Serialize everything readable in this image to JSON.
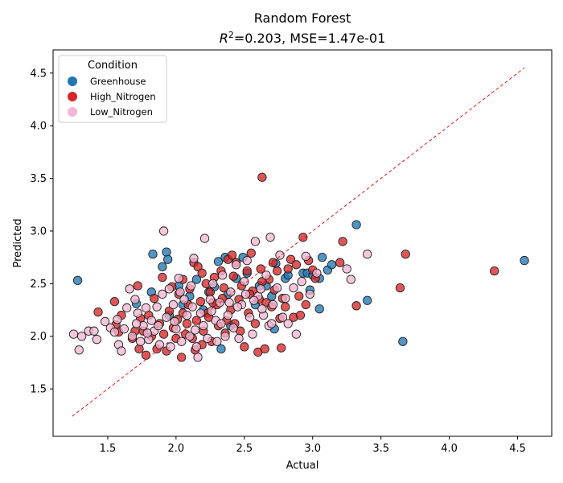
{
  "chart_data": {
    "type": "scatter",
    "title": "Random Forest",
    "subtitle": {
      "r2_label": "R",
      "r2_sup": "2",
      "r2_value": "=0.203, MSE=1.47e-01"
    },
    "xlabel": "Actual",
    "ylabel": "Predicted",
    "xlim": [
      1.1,
      4.75
    ],
    "ylim": [
      1.05,
      4.72
    ],
    "xticks": [
      "1.5",
      "2.0",
      "2.5",
      "3.0",
      "3.5",
      "4.0",
      "4.5"
    ],
    "yticks": [
      "1.5",
      "2.0",
      "2.5",
      "3.0",
      "3.5",
      "4.0",
      "4.5"
    ],
    "grid": false,
    "legend": {
      "title": "Condition",
      "placement": "top-left"
    },
    "reference_line": {
      "x": [
        1.24,
        4.55
      ],
      "y": [
        1.24,
        4.55
      ],
      "color": "#e31a1c",
      "style": "dashed"
    },
    "series": [
      {
        "name": "Greenhouse",
        "color": "#1f77b4",
        "points": [
          [
            1.28,
            2.53
          ],
          [
            1.71,
            2.31
          ],
          [
            1.82,
            2.42
          ],
          [
            1.83,
            2.78
          ],
          [
            1.9,
            2.66
          ],
          [
            1.93,
            2.8
          ],
          [
            1.94,
            2.73
          ],
          [
            2.02,
            2.48
          ],
          [
            2.1,
            2.38
          ],
          [
            2.15,
            2.54
          ],
          [
            2.24,
            2.42
          ],
          [
            2.28,
            2.47
          ],
          [
            2.31,
            2.71
          ],
          [
            2.33,
            1.88
          ],
          [
            2.36,
            2.75
          ],
          [
            2.38,
            2.4
          ],
          [
            2.44,
            2.55
          ],
          [
            2.49,
            2.75
          ],
          [
            2.58,
            2.3
          ],
          [
            2.61,
            2.48
          ],
          [
            2.7,
            2.38
          ],
          [
            2.72,
            2.07
          ],
          [
            2.73,
            2.69
          ],
          [
            2.8,
            2.55
          ],
          [
            2.82,
            2.58
          ],
          [
            2.93,
            2.6
          ],
          [
            2.96,
            2.6
          ],
          [
            2.98,
            2.44
          ],
          [
            3.0,
            2.58
          ],
          [
            3.05,
            2.55
          ],
          [
            3.05,
            2.26
          ],
          [
            3.07,
            2.75
          ],
          [
            3.11,
            2.63
          ],
          [
            3.14,
            2.68
          ],
          [
            3.32,
            3.06
          ],
          [
            3.4,
            2.34
          ],
          [
            3.66,
            1.95
          ],
          [
            4.55,
            2.72
          ],
          [
            2.05,
            2.3
          ],
          [
            1.95,
            2.2
          ],
          [
            2.2,
            2.25
          ],
          [
            2.4,
            2.1
          ],
          [
            2.52,
            2.6
          ],
          [
            2.66,
            2.48
          ]
        ]
      },
      {
        "name": "High_Nitrogen",
        "color": "#d62728",
        "points": [
          [
            1.43,
            2.23
          ],
          [
            1.55,
            2.33
          ],
          [
            1.56,
            2.11
          ],
          [
            1.58,
            2.04
          ],
          [
            1.6,
            2.2
          ],
          [
            1.68,
            1.98
          ],
          [
            1.7,
            2.05
          ],
          [
            1.72,
            2.48
          ],
          [
            1.73,
            1.88
          ],
          [
            1.74,
            2.17
          ],
          [
            1.76,
            2.05
          ],
          [
            1.78,
            1.82
          ],
          [
            1.8,
            2.2
          ],
          [
            1.82,
            2.0
          ],
          [
            1.84,
            2.36
          ],
          [
            1.86,
            1.88
          ],
          [
            1.88,
            2.12
          ],
          [
            1.9,
            2.56
          ],
          [
            1.91,
            2.02
          ],
          [
            1.93,
            1.86
          ],
          [
            1.95,
            2.24
          ],
          [
            1.97,
            2.47
          ],
          [
            2.0,
            1.98
          ],
          [
            2.01,
            2.16
          ],
          [
            2.02,
            2.4
          ],
          [
            2.04,
            1.8
          ],
          [
            2.05,
            2.54
          ],
          [
            2.07,
            2.02
          ],
          [
            2.09,
            2.3
          ],
          [
            2.1,
            2.45
          ],
          [
            2.12,
            1.98
          ],
          [
            2.13,
            2.7
          ],
          [
            2.14,
            1.87
          ],
          [
            2.15,
            2.15
          ],
          [
            2.16,
            2.66
          ],
          [
            2.18,
            2.33
          ],
          [
            2.19,
            2.6
          ],
          [
            2.2,
            2.05
          ],
          [
            2.22,
            2.5
          ],
          [
            2.23,
            2.22
          ],
          [
            2.25,
            2.42
          ],
          [
            2.26,
            1.95
          ],
          [
            2.28,
            2.56
          ],
          [
            2.3,
            2.3
          ],
          [
            2.31,
            2.1
          ],
          [
            2.33,
            2.62
          ],
          [
            2.35,
            2.46
          ],
          [
            2.36,
            2.03
          ],
          [
            2.38,
            2.73
          ],
          [
            2.4,
            2.25
          ],
          [
            2.41,
            2.77
          ],
          [
            2.42,
            2.57
          ],
          [
            2.43,
            2.12
          ],
          [
            2.44,
            2.7
          ],
          [
            2.46,
            2.35
          ],
          [
            2.48,
            2.48
          ],
          [
            2.5,
            1.9
          ],
          [
            2.52,
            2.62
          ],
          [
            2.53,
            2.22
          ],
          [
            2.55,
            2.79
          ],
          [
            2.56,
            2.43
          ],
          [
            2.58,
            2.12
          ],
          [
            2.6,
            1.85
          ],
          [
            2.61,
            2.35
          ],
          [
            2.62,
            2.64
          ],
          [
            2.63,
            3.51
          ],
          [
            2.65,
            1.88
          ],
          [
            2.66,
            2.32
          ],
          [
            2.68,
            2.54
          ],
          [
            2.7,
            2.28
          ],
          [
            2.71,
            2.7
          ],
          [
            2.72,
            2.44
          ],
          [
            2.74,
            2.62
          ],
          [
            2.76,
            2.17
          ],
          [
            2.77,
            1.89
          ],
          [
            2.78,
            2.36
          ],
          [
            2.8,
            2.28
          ],
          [
            2.82,
            2.64
          ],
          [
            2.84,
            2.73
          ],
          [
            2.86,
            2.18
          ],
          [
            2.88,
            2.68
          ],
          [
            2.9,
            2.38
          ],
          [
            2.91,
            2.2
          ],
          [
            2.93,
            2.94
          ],
          [
            2.95,
            2.3
          ],
          [
            2.97,
            2.72
          ],
          [
            3.0,
            2.63
          ],
          [
            3.02,
            2.55
          ],
          [
            3.2,
            2.7
          ],
          [
            3.22,
            2.9
          ],
          [
            3.32,
            2.29
          ],
          [
            3.64,
            2.46
          ],
          [
            3.68,
            2.78
          ],
          [
            4.33,
            2.62
          ],
          [
            2.08,
            2.12
          ],
          [
            2.24,
            2.18
          ],
          [
            2.37,
            2.15
          ],
          [
            2.47,
            2.05
          ],
          [
            1.98,
            2.08
          ],
          [
            2.27,
            2.32
          ],
          [
            2.54,
            2.4
          ],
          [
            2.19,
            1.92
          ],
          [
            2.05,
            2.22
          ],
          [
            2.63,
            2.52
          ],
          [
            2.34,
            2.36
          ]
        ]
      },
      {
        "name": "Low_Nitrogen",
        "color": "#f4b6d2",
        "points": [
          [
            1.25,
            2.02
          ],
          [
            1.29,
            1.87
          ],
          [
            1.31,
            2.0
          ],
          [
            1.36,
            2.05
          ],
          [
            1.4,
            2.05
          ],
          [
            1.42,
            1.97
          ],
          [
            1.48,
            2.14
          ],
          [
            1.52,
            2.08
          ],
          [
            1.55,
            2.04
          ],
          [
            1.58,
            1.92
          ],
          [
            1.6,
            1.86
          ],
          [
            1.62,
            2.07
          ],
          [
            1.64,
            2.27
          ],
          [
            1.66,
            2.45
          ],
          [
            1.68,
            2.0
          ],
          [
            1.7,
            2.35
          ],
          [
            1.72,
            2.22
          ],
          [
            1.74,
            1.95
          ],
          [
            1.76,
            2.1
          ],
          [
            1.78,
            2.27
          ],
          [
            1.8,
            1.97
          ],
          [
            1.82,
            2.15
          ],
          [
            1.84,
            2.05
          ],
          [
            1.86,
            2.28
          ],
          [
            1.88,
            1.92
          ],
          [
            1.9,
            2.4
          ],
          [
            1.91,
            3.0
          ],
          [
            1.93,
            2.18
          ],
          [
            1.95,
            2.45
          ],
          [
            1.96,
            1.9
          ],
          [
            1.98,
            2.3
          ],
          [
            2.0,
            2.07
          ],
          [
            2.02,
            2.55
          ],
          [
            2.04,
            1.95
          ],
          [
            2.06,
            2.35
          ],
          [
            2.08,
            2.2
          ],
          [
            2.1,
            2.0
          ],
          [
            2.12,
            2.28
          ],
          [
            2.13,
            2.74
          ],
          [
            2.15,
            1.9
          ],
          [
            2.16,
            1.8
          ],
          [
            2.18,
            2.22
          ],
          [
            2.2,
            2.1
          ],
          [
            2.21,
            2.93
          ],
          [
            2.23,
            1.98
          ],
          [
            2.25,
            2.35
          ],
          [
            2.27,
            2.5
          ],
          [
            2.29,
            2.15
          ],
          [
            2.3,
            1.95
          ],
          [
            2.32,
            2.32
          ],
          [
            2.34,
            2.58
          ],
          [
            2.36,
            2.0
          ],
          [
            2.38,
            2.2
          ],
          [
            2.4,
            2.42
          ],
          [
            2.42,
            2.08
          ],
          [
            2.44,
            2.68
          ],
          [
            2.46,
            1.98
          ],
          [
            2.48,
            2.3
          ],
          [
            2.5,
            2.52
          ],
          [
            2.52,
            2.72
          ],
          [
            2.54,
            2.18
          ],
          [
            2.56,
            2.02
          ],
          [
            2.58,
            2.9
          ],
          [
            2.6,
            2.38
          ],
          [
            2.62,
            2.45
          ],
          [
            2.64,
            2.2
          ],
          [
            2.66,
            2.58
          ],
          [
            2.68,
            2.1
          ],
          [
            2.69,
            2.94
          ],
          [
            2.71,
            2.3
          ],
          [
            2.74,
            2.46
          ],
          [
            2.76,
            2.77
          ],
          [
            2.78,
            2.18
          ],
          [
            2.8,
            2.36
          ],
          [
            2.82,
            2.12
          ],
          [
            2.86,
            2.46
          ],
          [
            2.88,
            2.02
          ],
          [
            2.92,
            2.52
          ],
          [
            2.95,
            2.76
          ],
          [
            2.98,
            2.4
          ],
          [
            3.03,
            2.6
          ],
          [
            3.25,
            2.64
          ],
          [
            3.28,
            2.54
          ],
          [
            3.4,
            2.78
          ],
          [
            1.57,
            2.16
          ],
          [
            1.87,
            2.1
          ],
          [
            2.03,
            2.42
          ],
          [
            2.14,
            2.06
          ],
          [
            2.26,
            2.24
          ],
          [
            2.39,
            2.32
          ],
          [
            2.51,
            2.4
          ],
          [
            2.63,
            2.26
          ],
          [
            1.79,
            2.03
          ],
          [
            1.99,
            2.14
          ],
          [
            2.11,
            2.48
          ],
          [
            2.33,
            2.12
          ],
          [
            2.45,
            2.28
          ],
          [
            2.57,
            2.34
          ],
          [
            2.7,
            2.12
          ],
          [
            1.71,
            2.12
          ]
        ]
      }
    ]
  }
}
